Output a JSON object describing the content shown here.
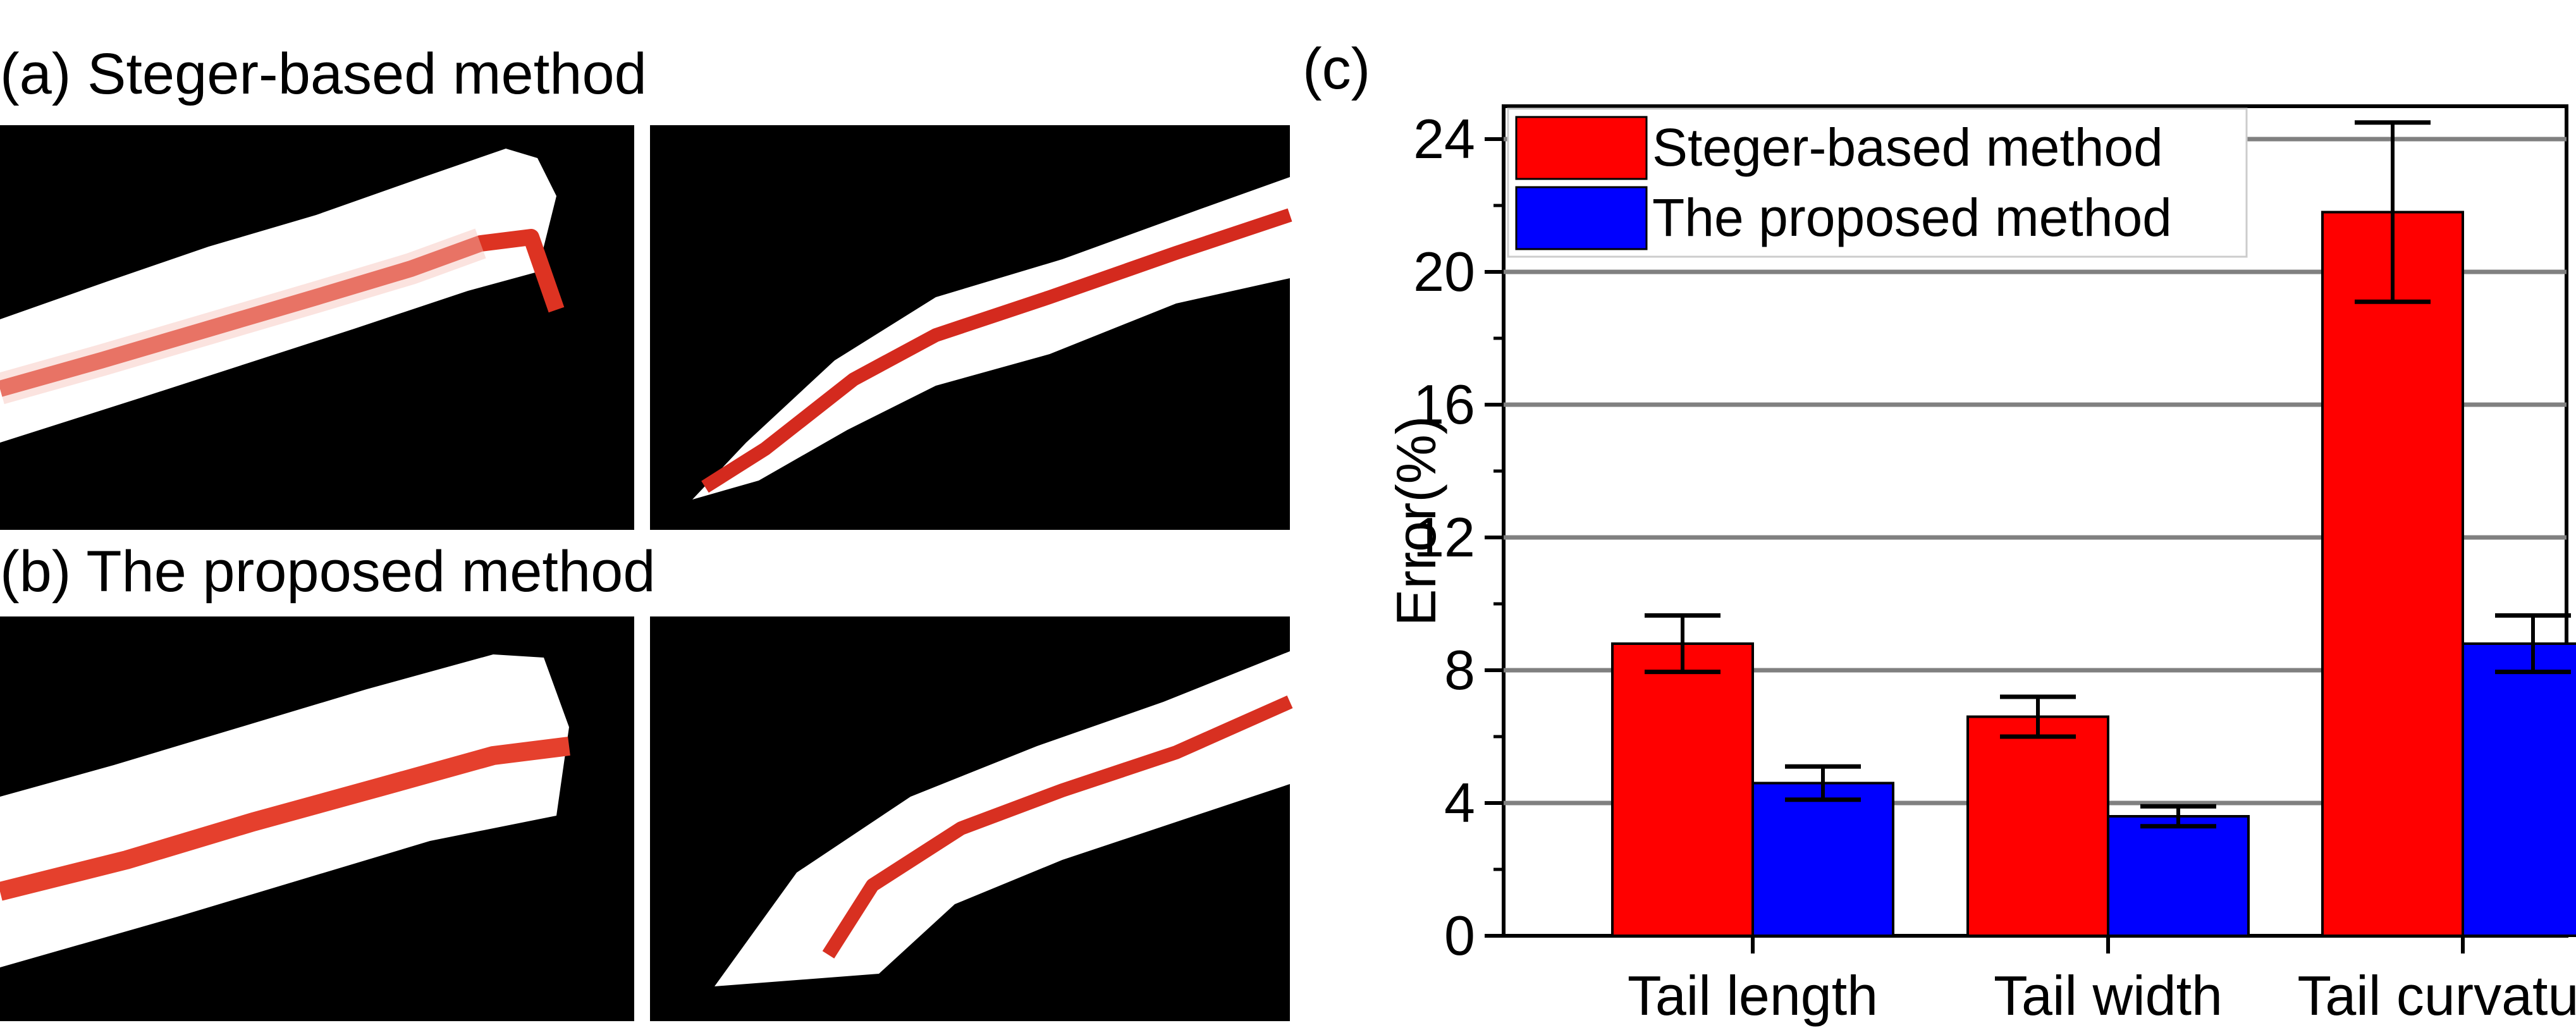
{
  "panels": {
    "a_label": "(a) Steger-based method",
    "b_label": "(b) The proposed method",
    "c_label": "(c)"
  },
  "chart_data": {
    "type": "bar",
    "title": "",
    "xlabel": "",
    "ylabel": "Error(%)",
    "categories": [
      "Tail length",
      "Tail width",
      "Tail curvature"
    ],
    "series": [
      {
        "name": "Steger-based method",
        "color": "#ff0000",
        "values": [
          8.8,
          6.6,
          21.8
        ],
        "errors": [
          0.85,
          0.6,
          2.7
        ]
      },
      {
        "name": "The proposed method",
        "color": "#0000ff",
        "values": [
          4.6,
          3.6,
          8.8
        ],
        "errors": [
          0.5,
          0.3,
          0.85
        ]
      }
    ],
    "ylim": [
      0,
      25
    ],
    "yticks": [
      0,
      4,
      8,
      12,
      16,
      20,
      24
    ],
    "grid": true,
    "legend_position": "top-left"
  }
}
